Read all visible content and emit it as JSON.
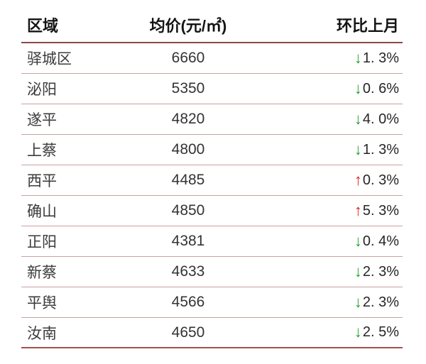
{
  "table": {
    "columns": [
      {
        "key": "region",
        "label": "区域"
      },
      {
        "key": "price",
        "label": "均价(元/㎡)"
      },
      {
        "key": "change",
        "label": "环比上月"
      }
    ],
    "rows": [
      {
        "region": "驿城区",
        "price": "6660",
        "direction": "down",
        "change": "1. 3%"
      },
      {
        "region": "泌阳",
        "price": "5350",
        "direction": "down",
        "change": "0. 6%"
      },
      {
        "region": "遂平",
        "price": "4820",
        "direction": "down",
        "change": "4. 0%"
      },
      {
        "region": "上蔡",
        "price": "4800",
        "direction": "down",
        "change": "1. 3%"
      },
      {
        "region": "西平",
        "price": "4485",
        "direction": "up",
        "change": "0. 3%"
      },
      {
        "region": "确山",
        "price": "4850",
        "direction": "up",
        "change": "5. 3%"
      },
      {
        "region": "正阳",
        "price": "4381",
        "direction": "down",
        "change": "0. 4%"
      },
      {
        "region": "新蔡",
        "price": "4633",
        "direction": "down",
        "change": "2. 3%"
      },
      {
        "region": "平舆",
        "price": "4566",
        "direction": "down",
        "change": "2. 3%"
      },
      {
        "region": "汝南",
        "price": "4650",
        "direction": "down",
        "change": "2. 5%"
      }
    ],
    "icons": {
      "up": "↑",
      "down": "↓"
    },
    "colors": {
      "up": "#d3251a",
      "down": "#1ea32c",
      "header_line": "#8a4848",
      "row_line": "#c9a2a2",
      "bottom_line": "#a34f4f"
    }
  },
  "chart_data": {
    "type": "table",
    "title": "",
    "columns": [
      "区域",
      "均价(元/㎡)",
      "环比上月"
    ],
    "rows": [
      [
        "驿城区",
        6660,
        -1.3
      ],
      [
        "泌阳",
        5350,
        -0.6
      ],
      [
        "遂平",
        4820,
        -4.0
      ],
      [
        "上蔡",
        4800,
        -1.3
      ],
      [
        "西平",
        4485,
        0.3
      ],
      [
        "确山",
        4850,
        5.3
      ],
      [
        "正阳",
        4381,
        -0.4
      ],
      [
        "新蔡",
        4633,
        -2.3
      ],
      [
        "平舆",
        4566,
        -2.3
      ],
      [
        "汝南",
        4650,
        -2.5
      ]
    ],
    "change_unit": "percent_vs_previous_month"
  }
}
